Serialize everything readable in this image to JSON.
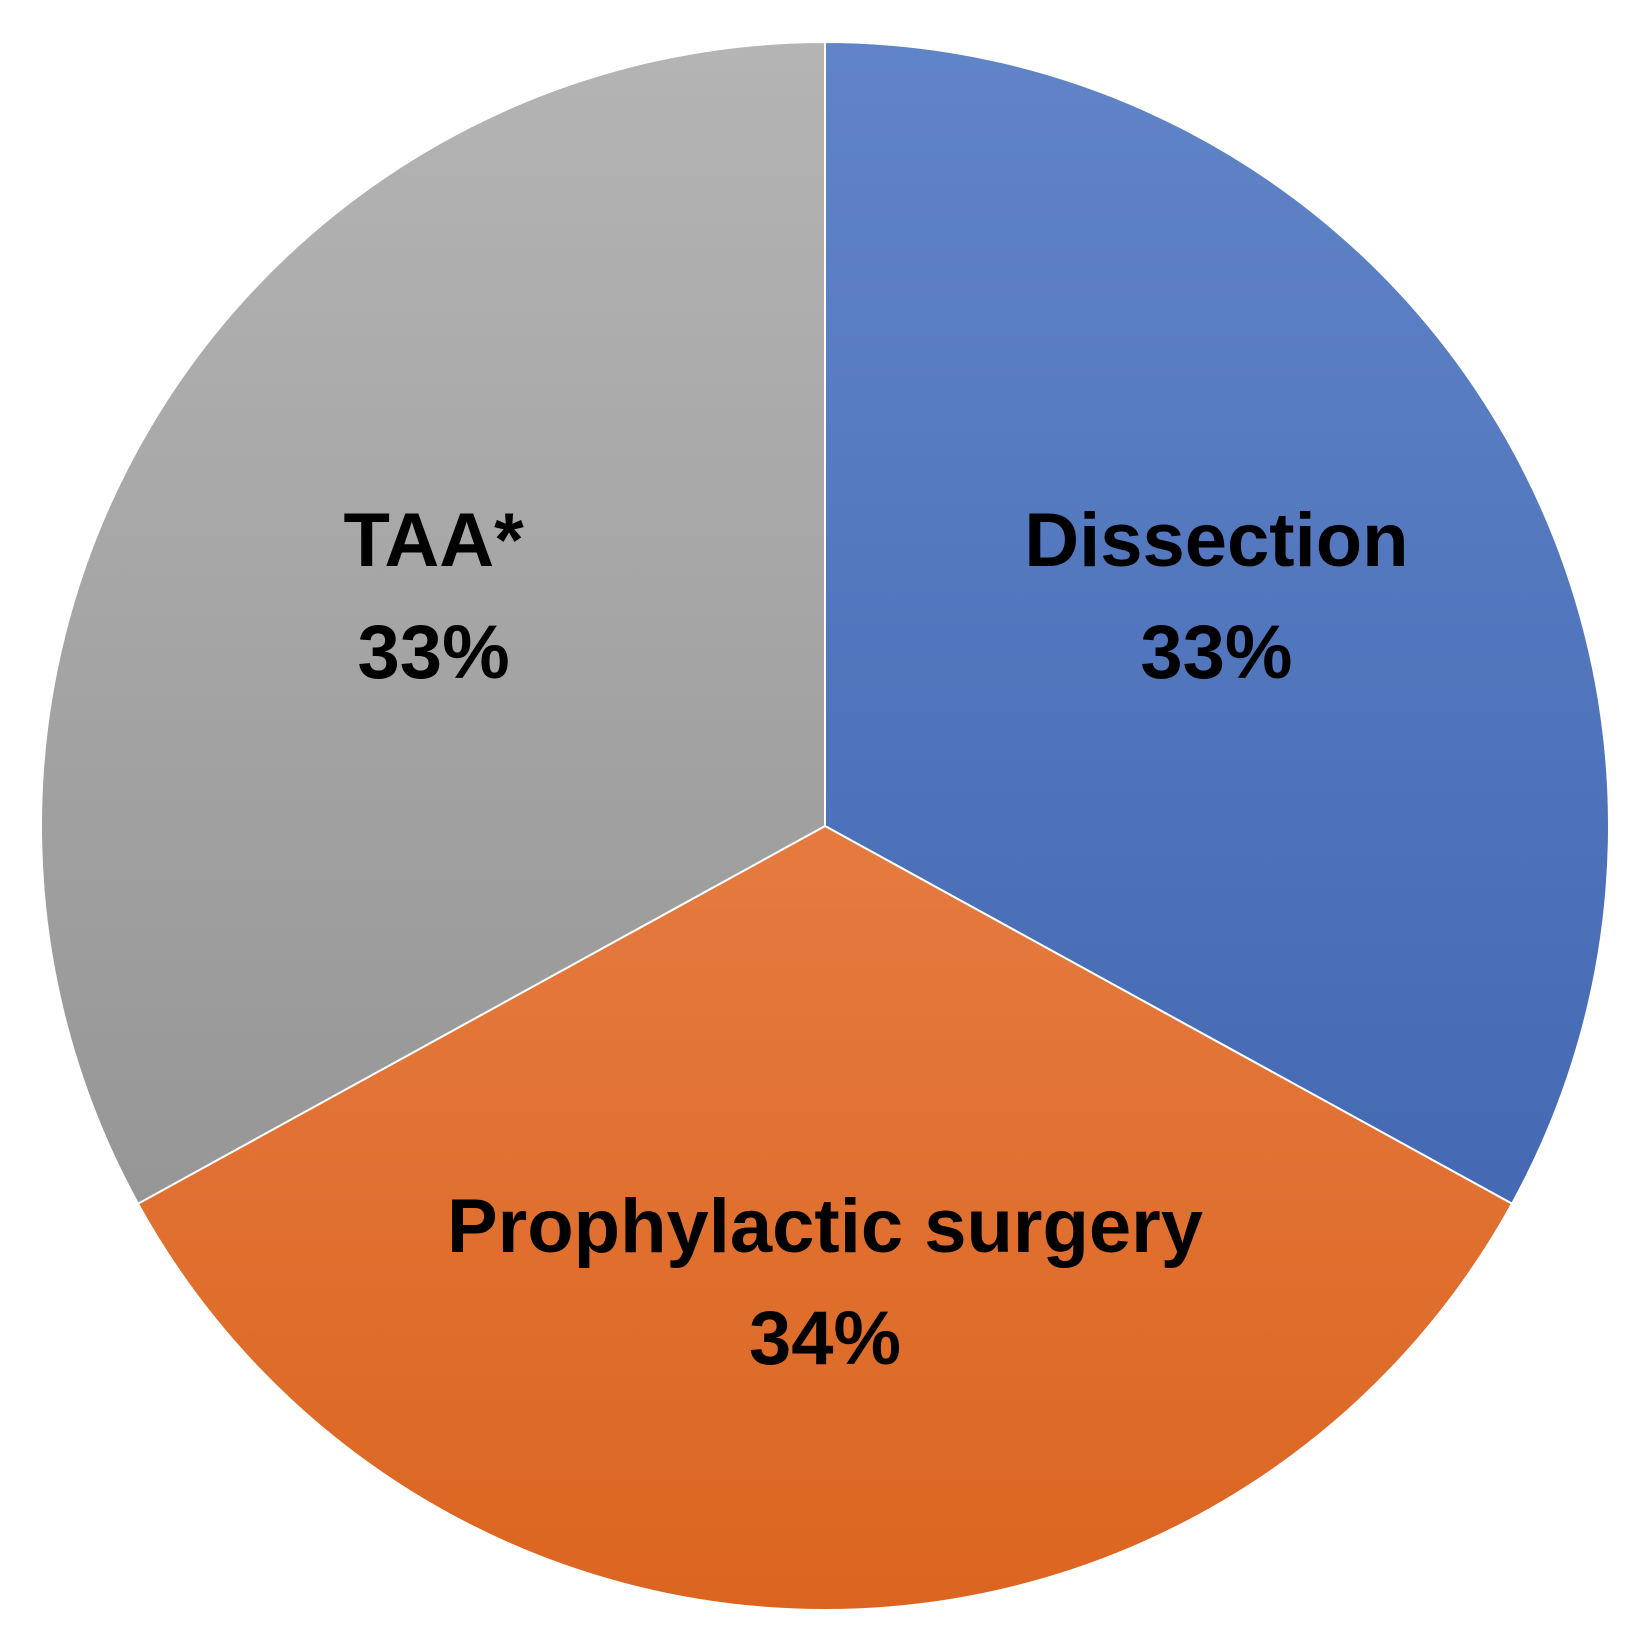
{
  "chart_data": {
    "type": "pie",
    "title": "",
    "slices": [
      {
        "label": "Dissection",
        "value": 33,
        "value_label": "33%",
        "color_top": "#6184c8",
        "color_bottom": "#3a60ab"
      },
      {
        "label": "Prophylactic surgery",
        "value": 34,
        "value_label": "34%",
        "color_top": "#f09060",
        "color_bottom": "#db6520"
      },
      {
        "label": "TAA*",
        "value": 33,
        "value_label": "33%",
        "color_top": "#b4b4b4",
        "color_bottom": "#8c8c8c"
      }
    ],
    "start_angle_deg": 0,
    "direction": "clockwise",
    "legend": "none",
    "data_labels": "inside"
  }
}
